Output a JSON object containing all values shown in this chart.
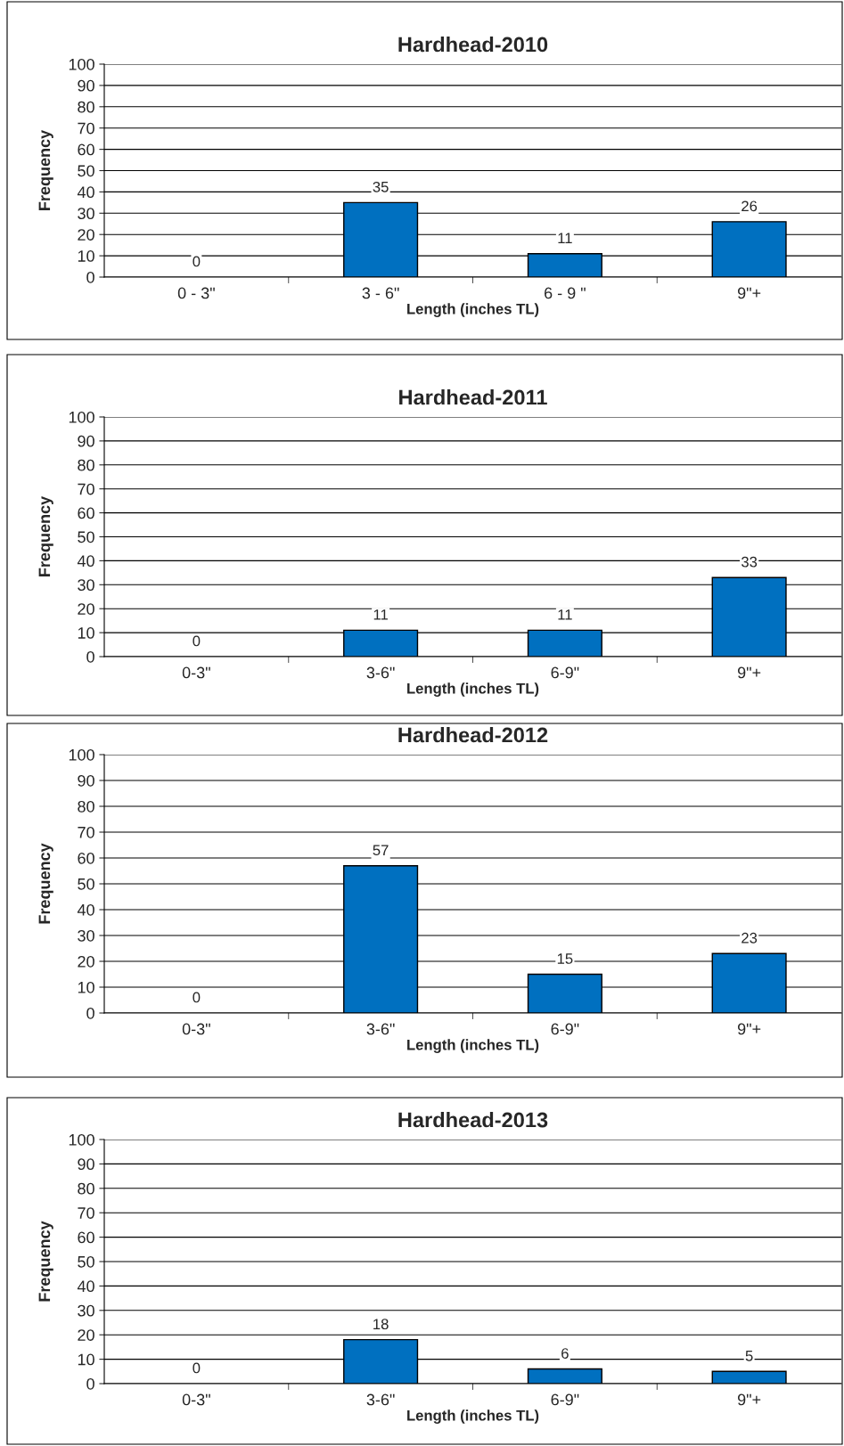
{
  "chart_data": [
    {
      "type": "bar",
      "title": "Hardhead-2010",
      "xlabel": "Length (inches TL)",
      "ylabel": "Frequency",
      "categories": [
        "0 - 3\"",
        "3 - 6\"",
        "6 - 9 \"",
        "9\"+"
      ],
      "values": [
        0,
        35,
        11,
        26
      ],
      "color": "#0070c0",
      "ylim": [
        0,
        100
      ],
      "yticks": [
        0,
        10,
        20,
        30,
        40,
        50,
        60,
        70,
        80,
        90,
        100
      ],
      "grid": "y",
      "data_labels": true
    },
    {
      "type": "bar",
      "title": "Hardhead-2011",
      "xlabel": "Length (inches TL)",
      "ylabel": "Frequency",
      "categories": [
        "0-3\"",
        "3-6\"",
        "6-9\"",
        "9\"+"
      ],
      "values": [
        0,
        11,
        11,
        33
      ],
      "color": "#0070c0",
      "ylim": [
        0,
        100
      ],
      "yticks": [
        0,
        10,
        20,
        30,
        40,
        50,
        60,
        70,
        80,
        90,
        100
      ],
      "grid": "y",
      "data_labels": true
    },
    {
      "type": "bar",
      "title": "Hardhead-2012",
      "xlabel": "Length (inches TL)",
      "ylabel": "Frequency",
      "categories": [
        "0-3\"",
        "3-6\"",
        "6-9\"",
        "9\"+"
      ],
      "values": [
        0,
        57,
        15,
        23
      ],
      "color": "#0070c0",
      "ylim": [
        0,
        100
      ],
      "yticks": [
        0,
        10,
        20,
        30,
        40,
        50,
        60,
        70,
        80,
        90,
        100
      ],
      "grid": "y",
      "data_labels": true
    },
    {
      "type": "bar",
      "title": "Hardhead-2013",
      "xlabel": "Length (inches TL)",
      "ylabel": "Frequency",
      "categories": [
        "0-3\"",
        "3-6\"",
        "6-9\"",
        "9\"+"
      ],
      "values": [
        0,
        18,
        6,
        5
      ],
      "color": "#0070c0",
      "ylim": [
        0,
        100
      ],
      "yticks": [
        0,
        10,
        20,
        30,
        40,
        50,
        60,
        70,
        80,
        90,
        100
      ],
      "grid": "y",
      "data_labels": true
    }
  ]
}
